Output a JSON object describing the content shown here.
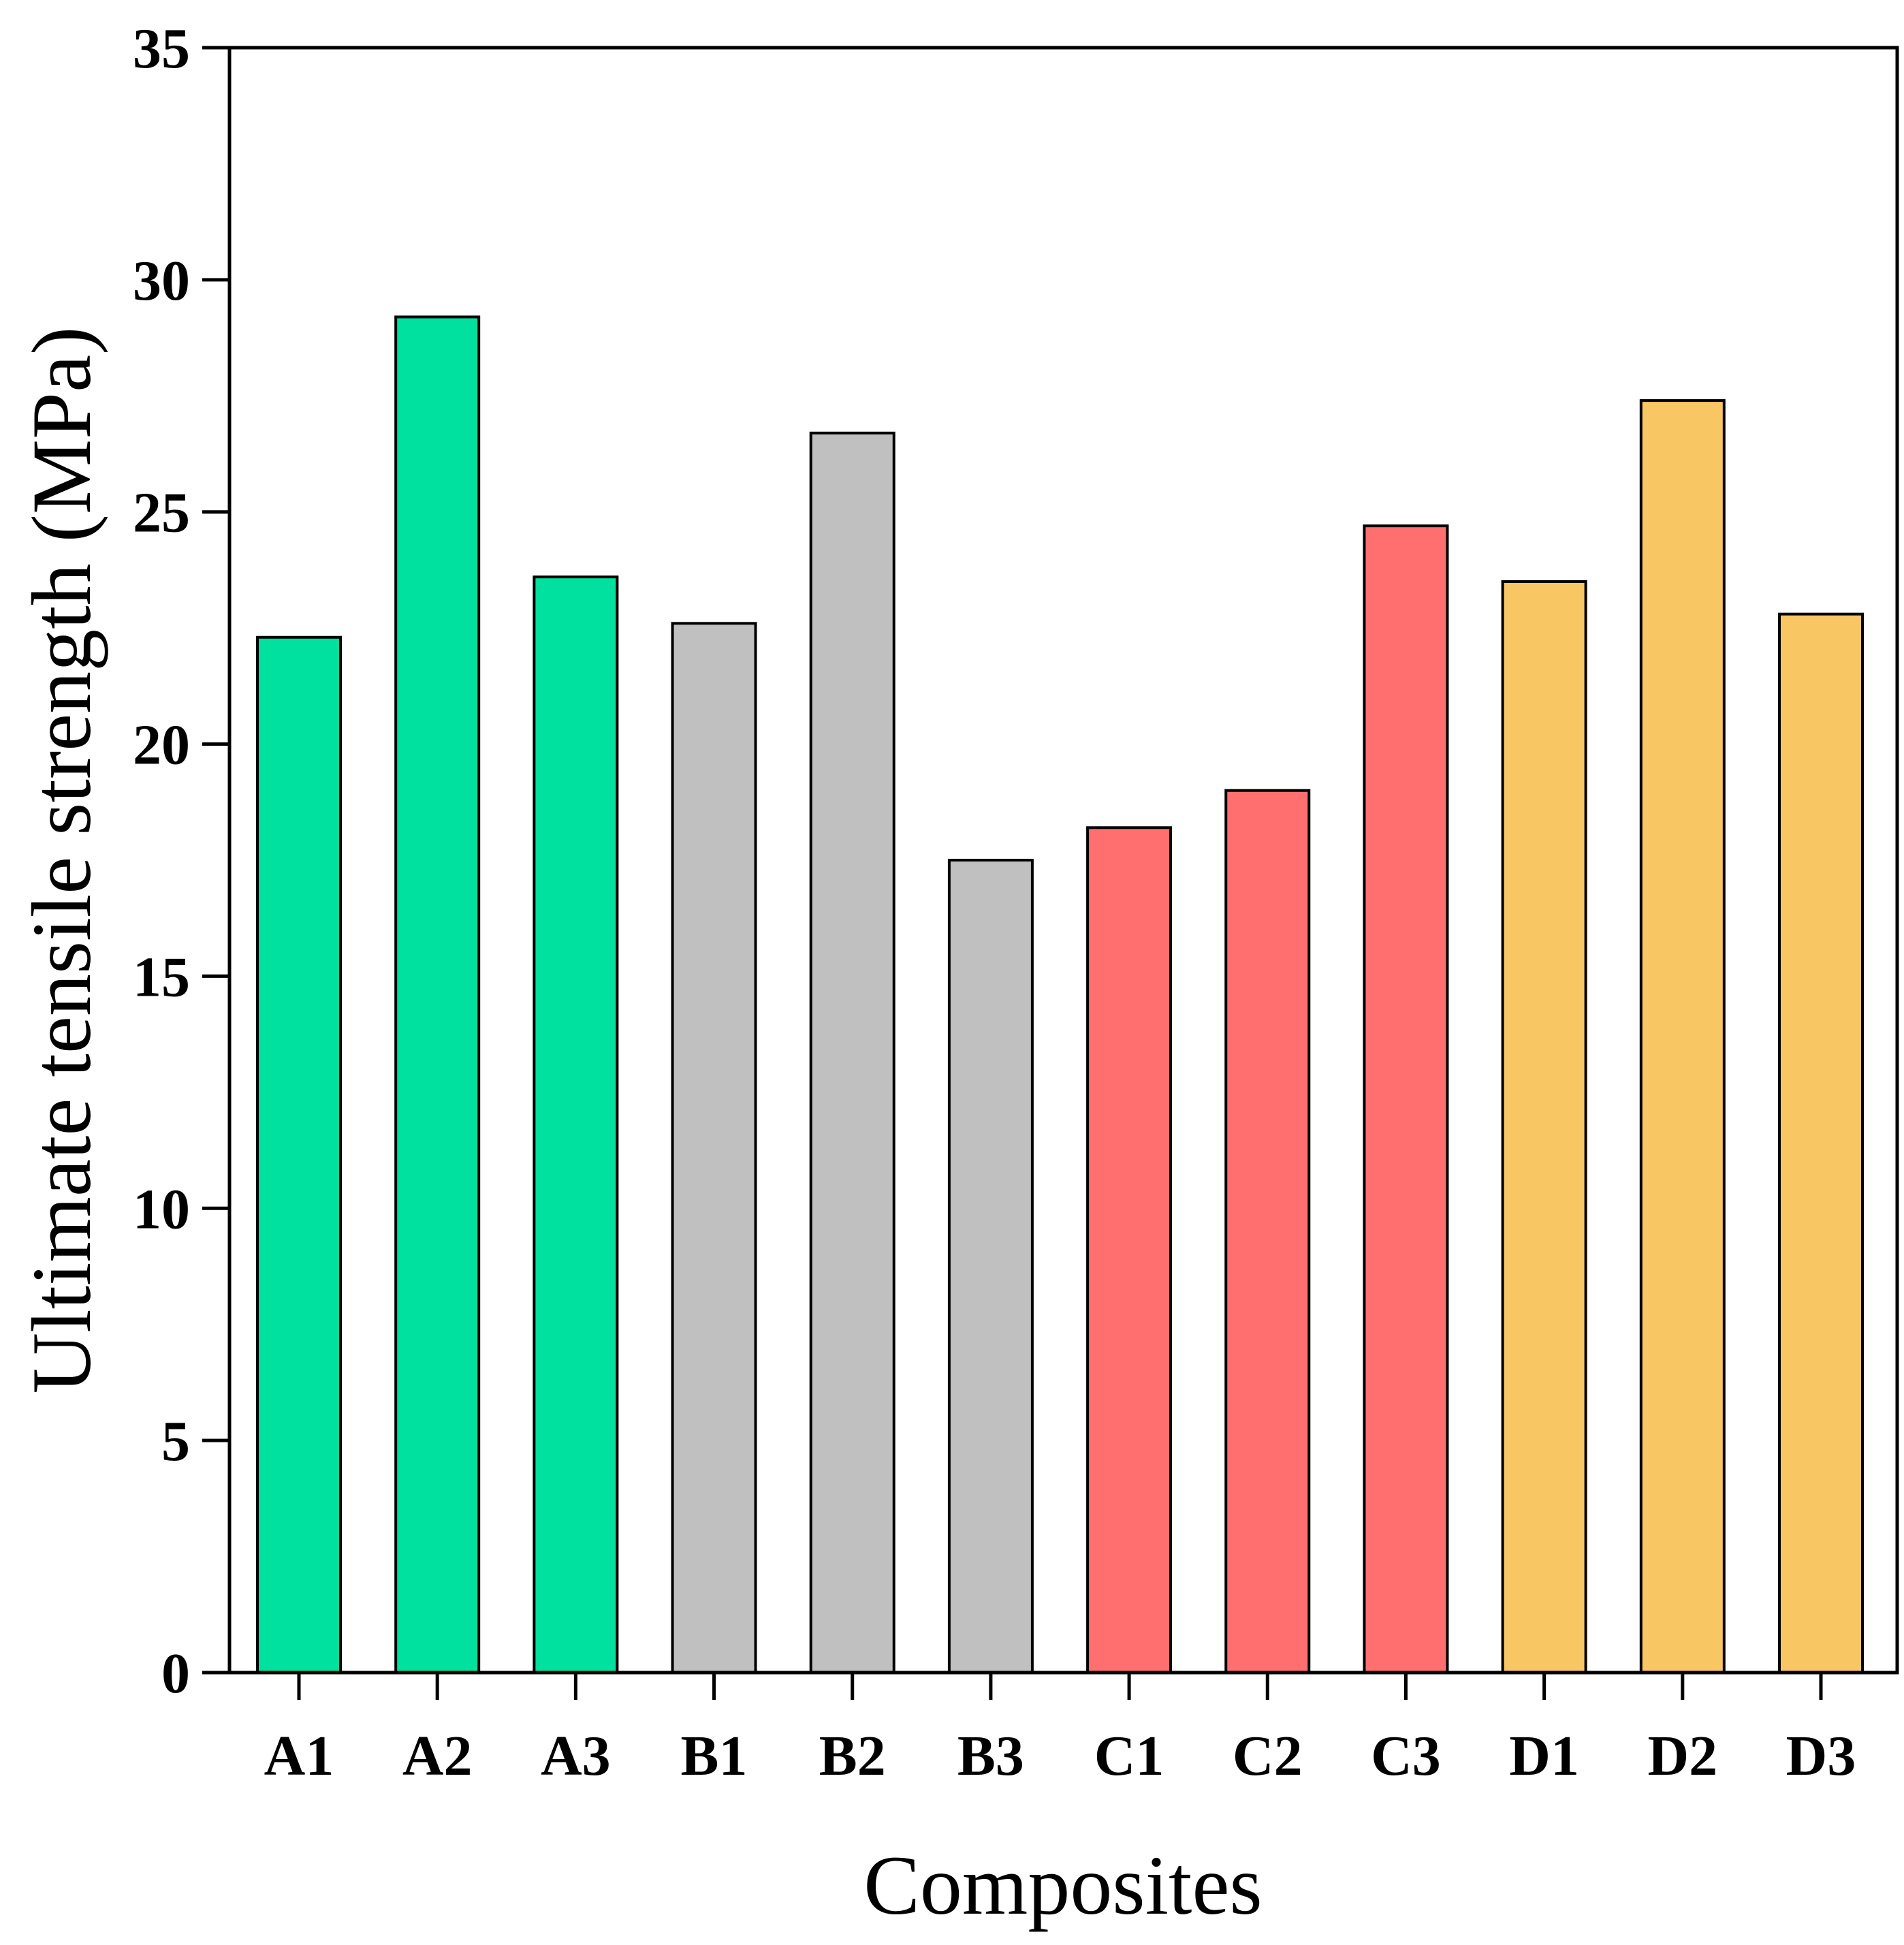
{
  "chart_data": {
    "type": "bar",
    "title": "",
    "xlabel": "Composites",
    "ylabel": "Ultimate tensile strength (MPa)",
    "categories": [
      "A1",
      "A2",
      "A3",
      "B1",
      "B2",
      "B3",
      "C1",
      "C2",
      "C3",
      "D1",
      "D2",
      "D3"
    ],
    "values": [
      22.3,
      29.2,
      23.6,
      22.6,
      26.7,
      17.5,
      18.2,
      19.0,
      24.7,
      23.5,
      27.4,
      22.8
    ],
    "groups": [
      {
        "name": "A",
        "color": "#00E09E",
        "categories": [
          "A1",
          "A2",
          "A3"
        ]
      },
      {
        "name": "B",
        "color": "#C0C0C0",
        "categories": [
          "B1",
          "B2",
          "B3"
        ]
      },
      {
        "name": "C",
        "color": "#FF6F6F",
        "categories": [
          "C1",
          "C2",
          "C3"
        ]
      },
      {
        "name": "D",
        "color": "#F9C664",
        "categories": [
          "D1",
          "D2",
          "D3"
        ]
      }
    ],
    "ylim": [
      0,
      35
    ],
    "yticks": [
      0,
      5,
      10,
      15,
      20,
      25,
      30,
      35
    ],
    "grid": false,
    "legend": "none"
  }
}
